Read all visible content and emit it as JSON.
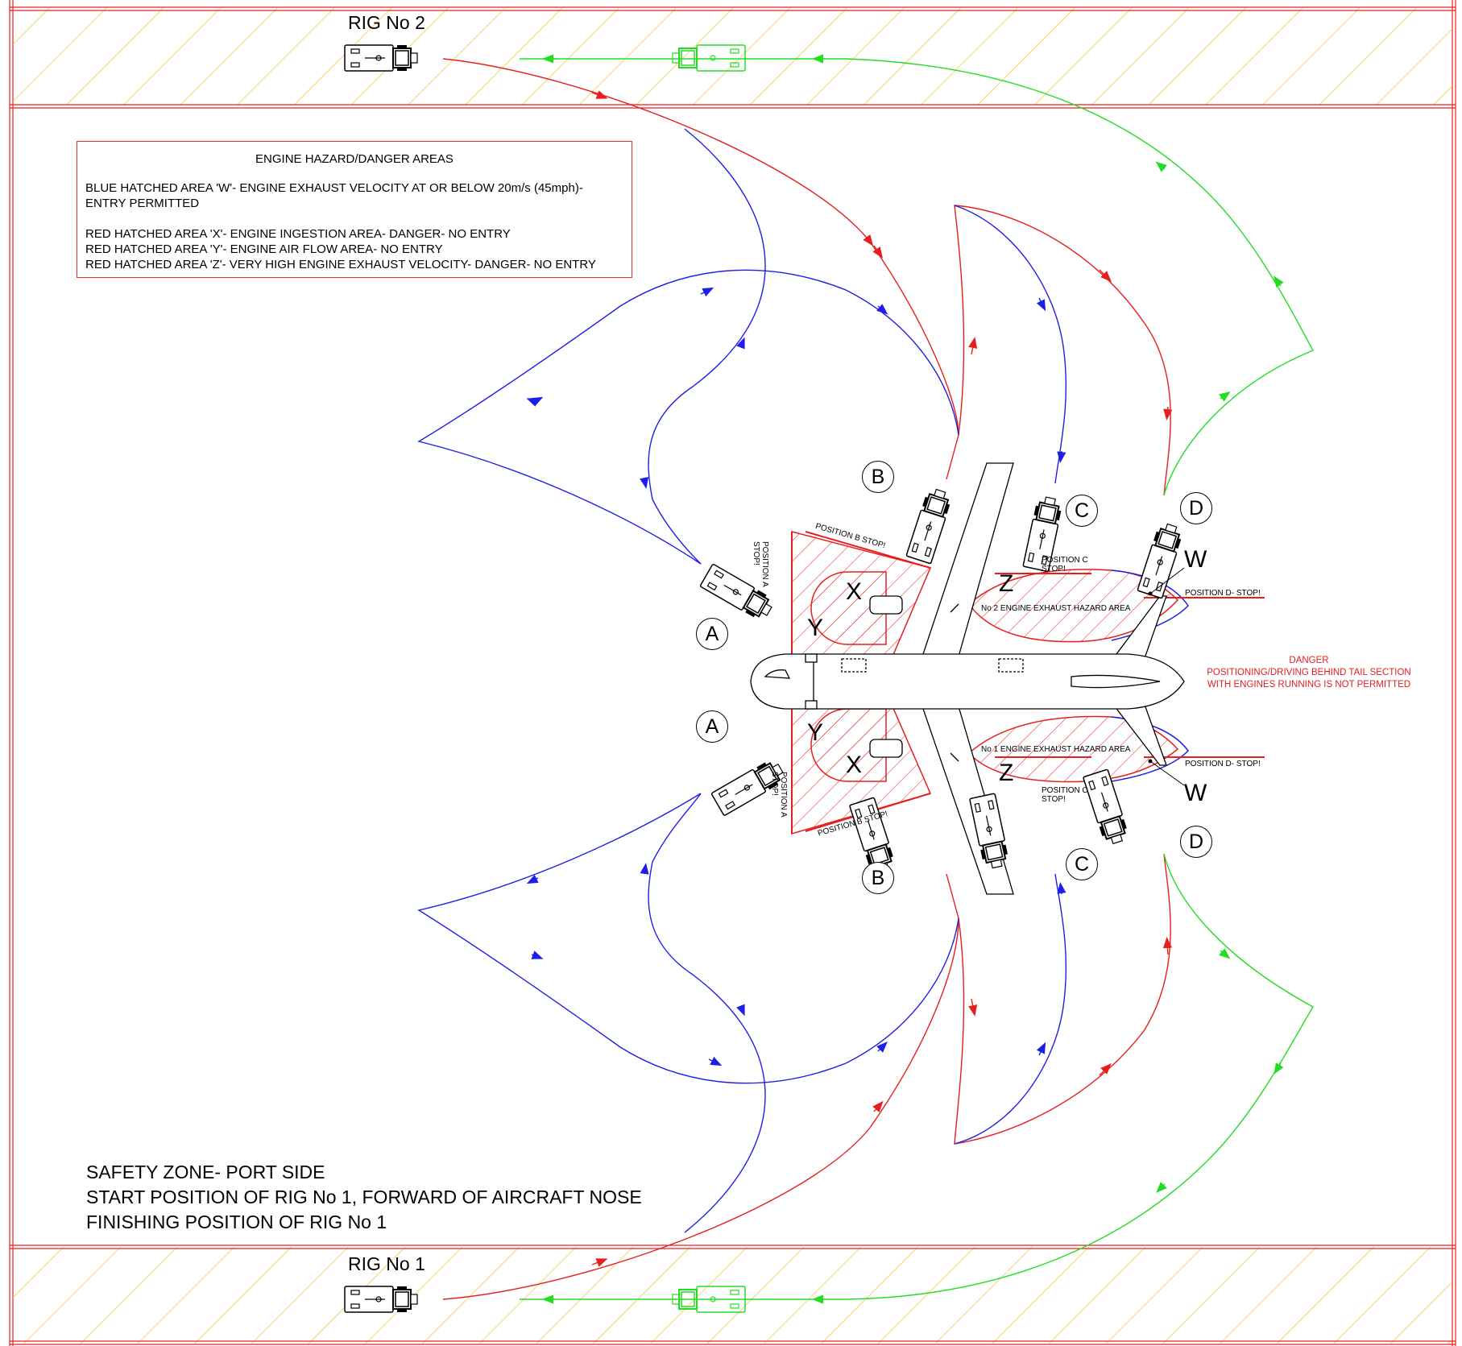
{
  "legend": {
    "title": "ENGINE HAZARD/DANGER AREAS",
    "line1": "BLUE HATCHED AREA 'W'- ENGINE EXHAUST VELOCITY AT OR BELOW 20m/s (45mph)-",
    "line2": "ENTRY PERMITTED",
    "line3": "RED HATCHED AREA 'X'-  ENGINE INGESTION AREA- DANGER- NO ENTRY",
    "line4": "RED HATCHED AREA 'Y'-  ENGINE AIR FLOW AREA- NO ENTRY",
    "line5": "RED HATCHED AREA 'Z'-  VERY HIGH ENGINE EXHAUST VELOCITY- DANGER- NO ENTRY"
  },
  "rigs": {
    "rig2": "RIG No 2",
    "rig1": "RIG No 1"
  },
  "notes": {
    "line1": "SAFETY ZONE- PORT SIDE",
    "line2": "START POSITION OF RIG No 1, FORWARD OF AIRCRAFT NOSE",
    "line3": "FINISHING POSITION OF RIG No 1"
  },
  "danger": {
    "line1": "DANGER",
    "line2": "POSITIONING/DRIVING BEHIND TAIL SECTION",
    "line3": "WITH ENGINES RUNNING IS NOT PERMITTED"
  },
  "positions": {
    "a": "A",
    "b": "B",
    "c": "C",
    "d": "D"
  },
  "zones": {
    "w": "W",
    "x": "X",
    "y": "Y",
    "z": "Z"
  },
  "stops": {
    "pos_a": "POSITION A",
    "stop": "STOP!",
    "pos_b": "POSITION B  STOP!",
    "pos_c": "POSITION C",
    "pos_d": "POSITION D- STOP!"
  },
  "hazard_areas": {
    "no2": "No 2 ENGINE EXHAUST HAZARD AREA",
    "no1": "No 1 ENGINE EXHAUST HAZARD AREA"
  },
  "colors": {
    "red": "#e61e1e",
    "blue": "#1e1ee6",
    "green": "#22dd22",
    "hatch": "#f0c030",
    "black": "#000000"
  }
}
